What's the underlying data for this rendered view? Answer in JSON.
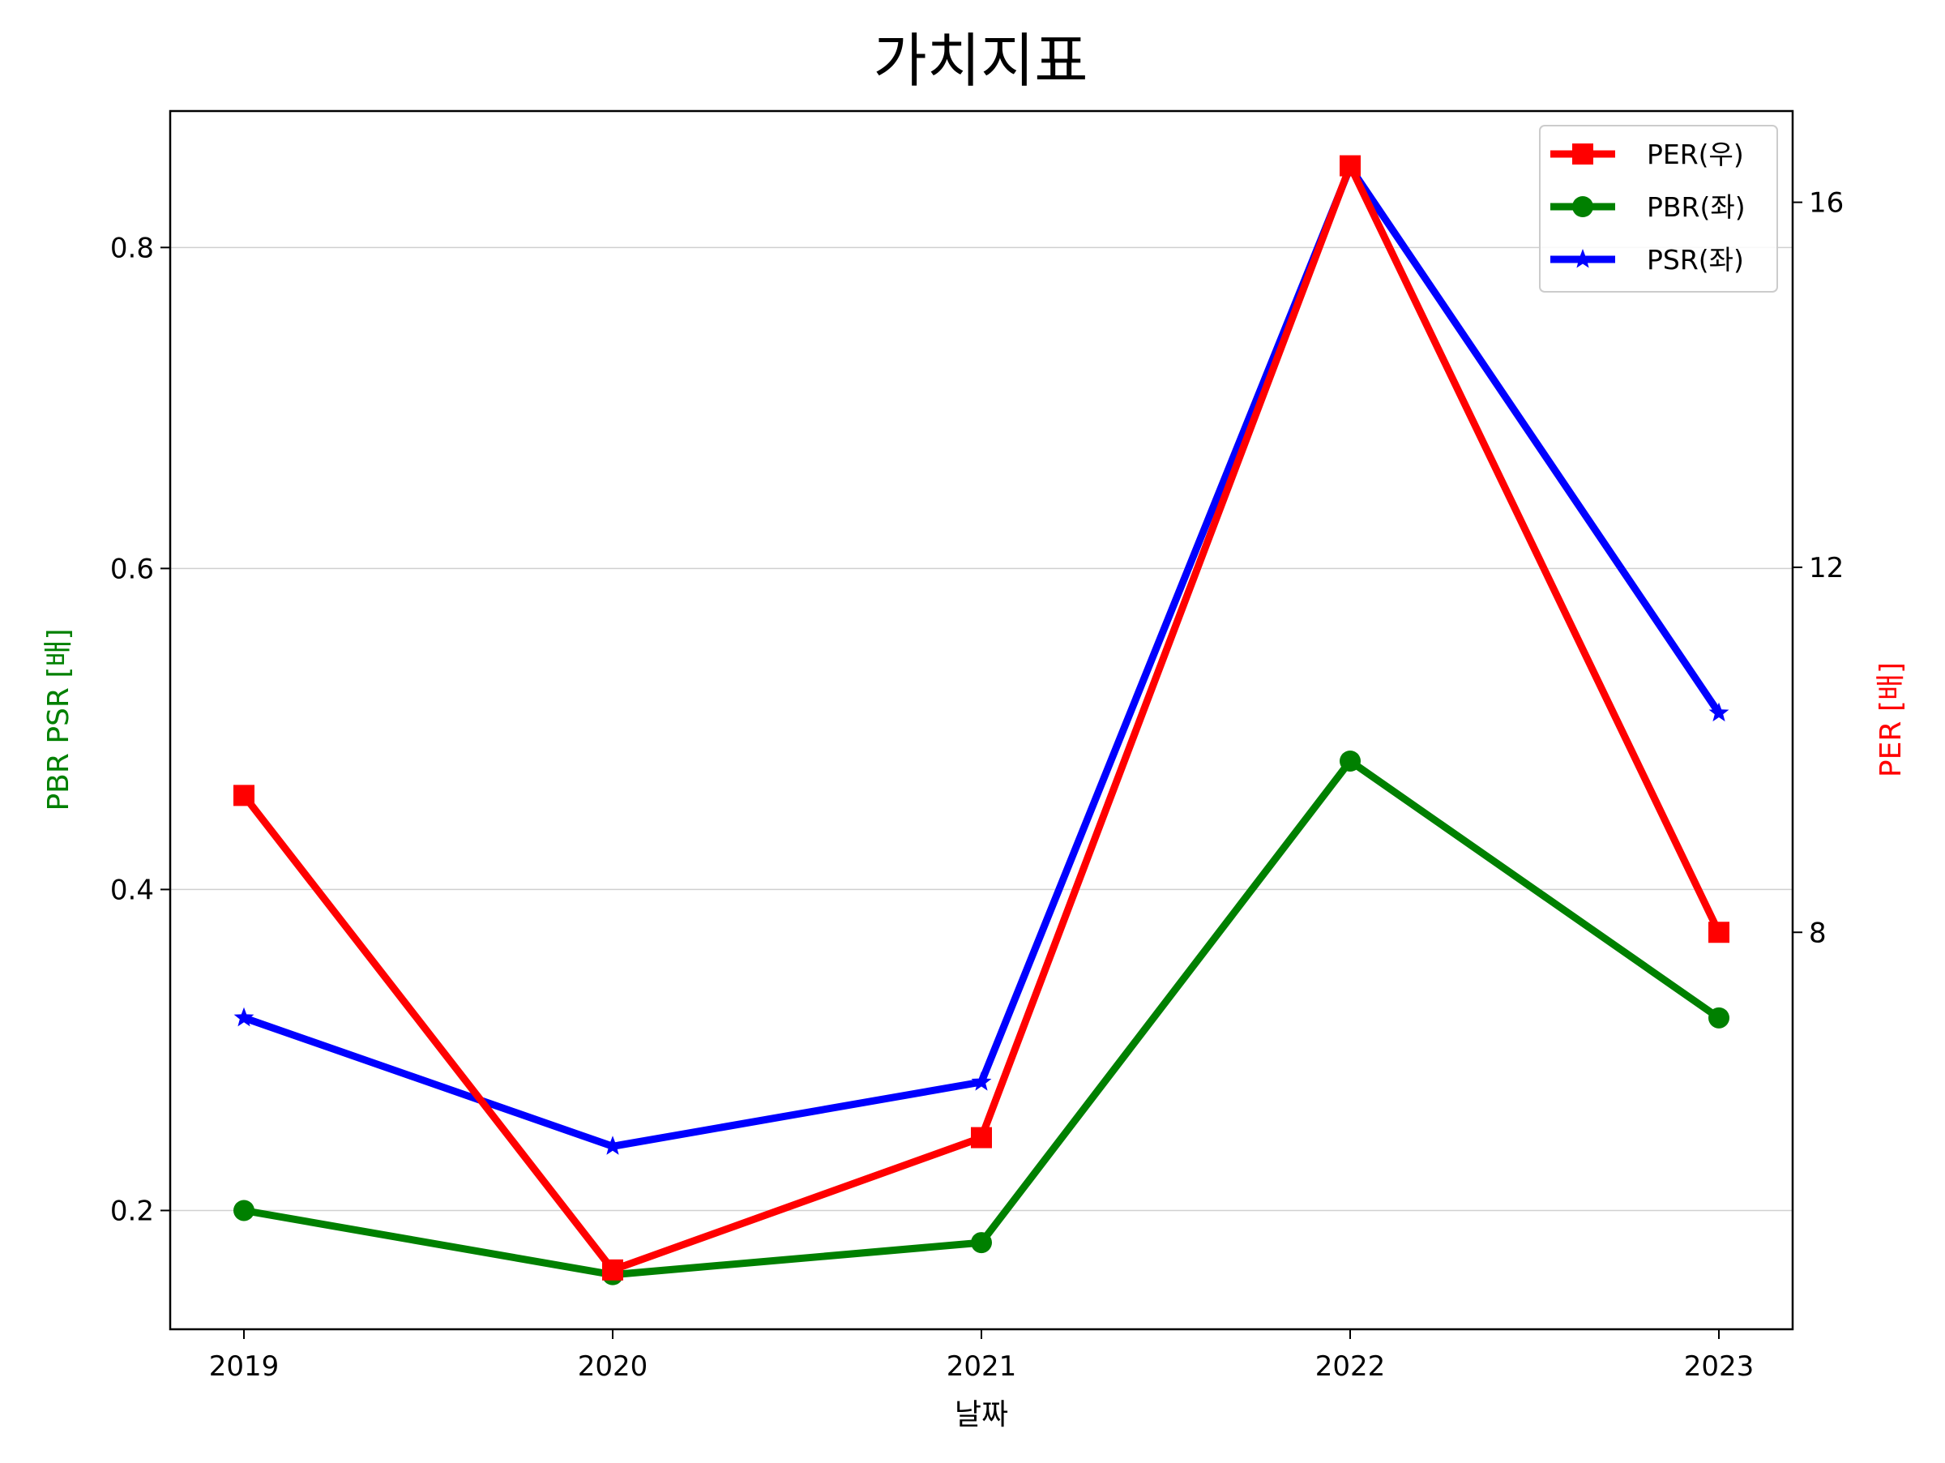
{
  "chart_data": {
    "type": "line",
    "title": "가치지표",
    "xlabel": "날짜",
    "ylabel_left": "PBR PSR [배]",
    "ylabel_right": "PER [배]",
    "categories": [
      "2019",
      "2020",
      "2021",
      "2022",
      "2023"
    ],
    "ylim_left": [
      0.126,
      0.885
    ],
    "ylim_right": [
      3.65,
      17.0
    ],
    "yticks_left": [
      0.2,
      0.4,
      0.6,
      0.8
    ],
    "yticks_left_labels": [
      "0.2",
      "0.4",
      "0.6",
      "0.8"
    ],
    "yticks_right": [
      8,
      12,
      16
    ],
    "yticks_right_labels": [
      "8",
      "12",
      "16"
    ],
    "grid": "horizontal",
    "legend_placement": "top-right",
    "series": [
      {
        "name": "PER(우)",
        "axis": "right",
        "marker": "square",
        "color": "#ff0000",
        "values": [
          9.5,
          4.3,
          5.75,
          16.4,
          8.0
        ]
      },
      {
        "name": "PBR(좌)",
        "axis": "left",
        "marker": "circle",
        "color": "#008000",
        "values": [
          0.2,
          0.16,
          0.18,
          0.48,
          0.32
        ]
      },
      {
        "name": "PSR(좌)",
        "axis": "left",
        "marker": "star",
        "color": "#0000ff",
        "values": [
          0.32,
          0.24,
          0.28,
          0.85,
          0.51
        ]
      }
    ],
    "left_label_color": "#008000",
    "right_label_color": "#ff0000"
  }
}
